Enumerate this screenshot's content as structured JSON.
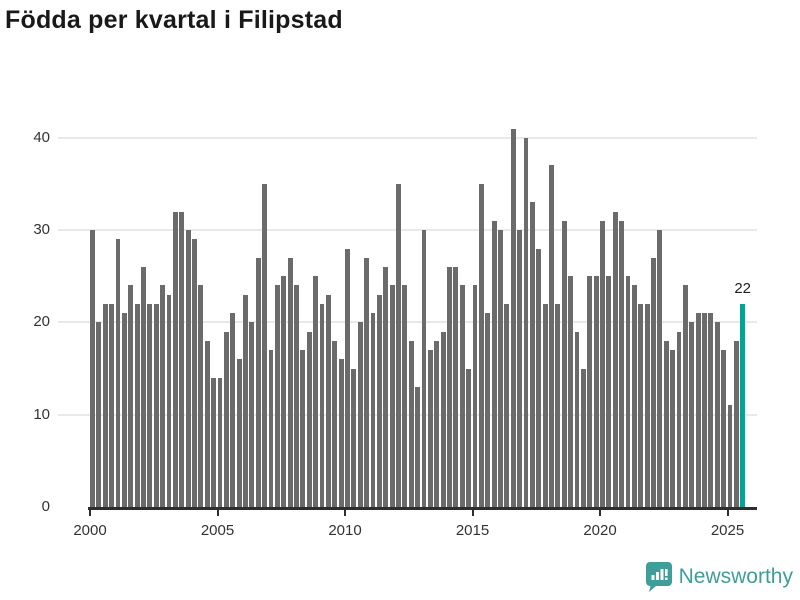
{
  "title": "Födda per kvartal i Filipstad",
  "chart_data": {
    "type": "bar",
    "title": "Födda per kvartal i Filipstad",
    "x_unit": "quarter",
    "x_start": "2000 Q1",
    "x_end": "2025 Q3",
    "grid": true,
    "legend": "none",
    "ylim": [
      0,
      42
    ],
    "yticks": [
      0,
      10,
      20,
      30,
      40
    ],
    "xticks": [
      2000,
      2005,
      2010,
      2015,
      2020,
      2025
    ],
    "bar_color": "#6b6b6b",
    "highlight_color": "#00a49d",
    "values_by_year": {
      "2000": [
        30,
        20,
        22,
        22
      ],
      "2001": [
        29,
        21,
        24,
        22
      ],
      "2002": [
        26,
        22,
        22,
        24
      ],
      "2003": [
        23,
        32,
        32,
        30
      ],
      "2004": [
        29,
        24,
        18,
        14
      ],
      "2005": [
        14,
        19,
        21,
        16
      ],
      "2006": [
        23,
        20,
        27,
        35
      ],
      "2007": [
        17,
        24,
        25,
        27
      ],
      "2008": [
        24,
        17,
        19,
        25
      ],
      "2009": [
        22,
        23,
        18,
        16
      ],
      "2010": [
        28,
        15,
        20,
        27
      ],
      "2011": [
        21,
        23,
        26,
        24
      ],
      "2012": [
        35,
        24,
        18,
        13
      ],
      "2013": [
        30,
        17,
        18,
        19
      ],
      "2014": [
        26,
        26,
        24,
        15
      ],
      "2015": [
        24,
        35,
        21,
        31
      ],
      "2016": [
        30,
        22,
        41,
        30
      ],
      "2017": [
        40,
        33,
        28,
        22
      ],
      "2018": [
        37,
        22,
        31,
        25
      ],
      "2019": [
        19,
        15,
        25,
        25
      ],
      "2020": [
        31,
        25,
        32,
        31
      ],
      "2021": [
        25,
        24,
        22,
        22
      ],
      "2022": [
        27,
        30,
        18,
        17
      ],
      "2023": [
        19,
        24,
        20,
        21
      ],
      "2024": [
        21,
        21,
        20,
        17
      ],
      "2025": [
        11,
        18,
        22
      ]
    },
    "highlight": {
      "quarter": "2025 Q3",
      "value": 22,
      "label": "22",
      "note": "last bar drawn in teal with value label above"
    }
  },
  "axes": {
    "y_labels": [
      "0",
      "10",
      "20",
      "30",
      "40"
    ],
    "x_labels": [
      "2000",
      "2005",
      "2010",
      "2015",
      "2020",
      "2025"
    ]
  },
  "annotation": {
    "text": "22"
  },
  "logo": {
    "text": "Newsworthy",
    "color": "#3f9e99",
    "icon": "bar-chart-speech-bubble-icon"
  }
}
